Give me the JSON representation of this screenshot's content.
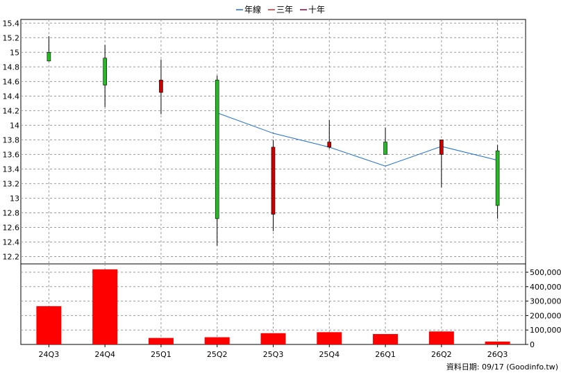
{
  "legend": [
    {
      "label": "年線",
      "color": "#1f6fd1"
    },
    {
      "label": "三年",
      "color": "#d62728"
    },
    {
      "label": "十年",
      "color": "#8b0038"
    }
  ],
  "footer": "資料日期: 09/17  (Goodinfo.tw)",
  "chart_data": [
    {
      "type": "candlestick",
      "categories": [
        "24Q3",
        "24Q4",
        "25Q1",
        "25Q2",
        "25Q3",
        "25Q4",
        "26Q1",
        "26Q2",
        "26Q3"
      ],
      "yticks": [
        "12.2",
        "12.4",
        "12.6",
        "12.8",
        "13",
        "13.2",
        "13.4",
        "13.6",
        "13.8",
        "14",
        "14.2",
        "14.4",
        "14.6",
        "14.8",
        "15",
        "15.2",
        "15.4"
      ],
      "ylim": [
        12.1,
        15.45
      ],
      "grid": true,
      "legend_position": "top-center",
      "up_color": "#22bb22",
      "down_color": "#cc0000",
      "candles": [
        {
          "open": 14.88,
          "high": 15.22,
          "low": 14.88,
          "close": 15.0
        },
        {
          "open": 14.55,
          "high": 15.1,
          "low": 14.25,
          "close": 14.92
        },
        {
          "open": 14.62,
          "high": 14.9,
          "low": 14.15,
          "close": 14.45
        },
        {
          "open": 12.72,
          "high": 14.68,
          "low": 12.35,
          "close": 14.62
        },
        {
          "open": 13.7,
          "high": 13.8,
          "low": 12.55,
          "close": 12.78
        },
        {
          "open": 13.77,
          "high": 14.07,
          "low": 13.68,
          "close": 13.7
        },
        {
          "open": 13.6,
          "high": 13.97,
          "low": 13.6,
          "close": 13.77
        },
        {
          "open": 13.8,
          "high": 13.8,
          "low": 13.15,
          "close": 13.6
        },
        {
          "open": 12.9,
          "high": 13.73,
          "low": 12.72,
          "close": 13.65
        }
      ],
      "series": [
        {
          "name": "年線",
          "color": "#1f6fd1",
          "values": [
            null,
            null,
            null,
            14.17,
            13.89,
            13.7,
            13.44,
            13.71,
            13.52
          ]
        }
      ]
    },
    {
      "type": "bar",
      "categories": [
        "24Q3",
        "24Q4",
        "25Q1",
        "25Q2",
        "25Q3",
        "25Q4",
        "26Q1",
        "26Q2",
        "26Q3"
      ],
      "values": [
        265000,
        520000,
        45000,
        50000,
        78000,
        85000,
        72000,
        90000,
        20000
      ],
      "yticks": [
        "0",
        "100,000",
        "200,000",
        "300,000",
        "400,000",
        "500,000"
      ],
      "ylim": [
        0,
        500000
      ],
      "color": "#ff0000",
      "grid": true
    }
  ]
}
